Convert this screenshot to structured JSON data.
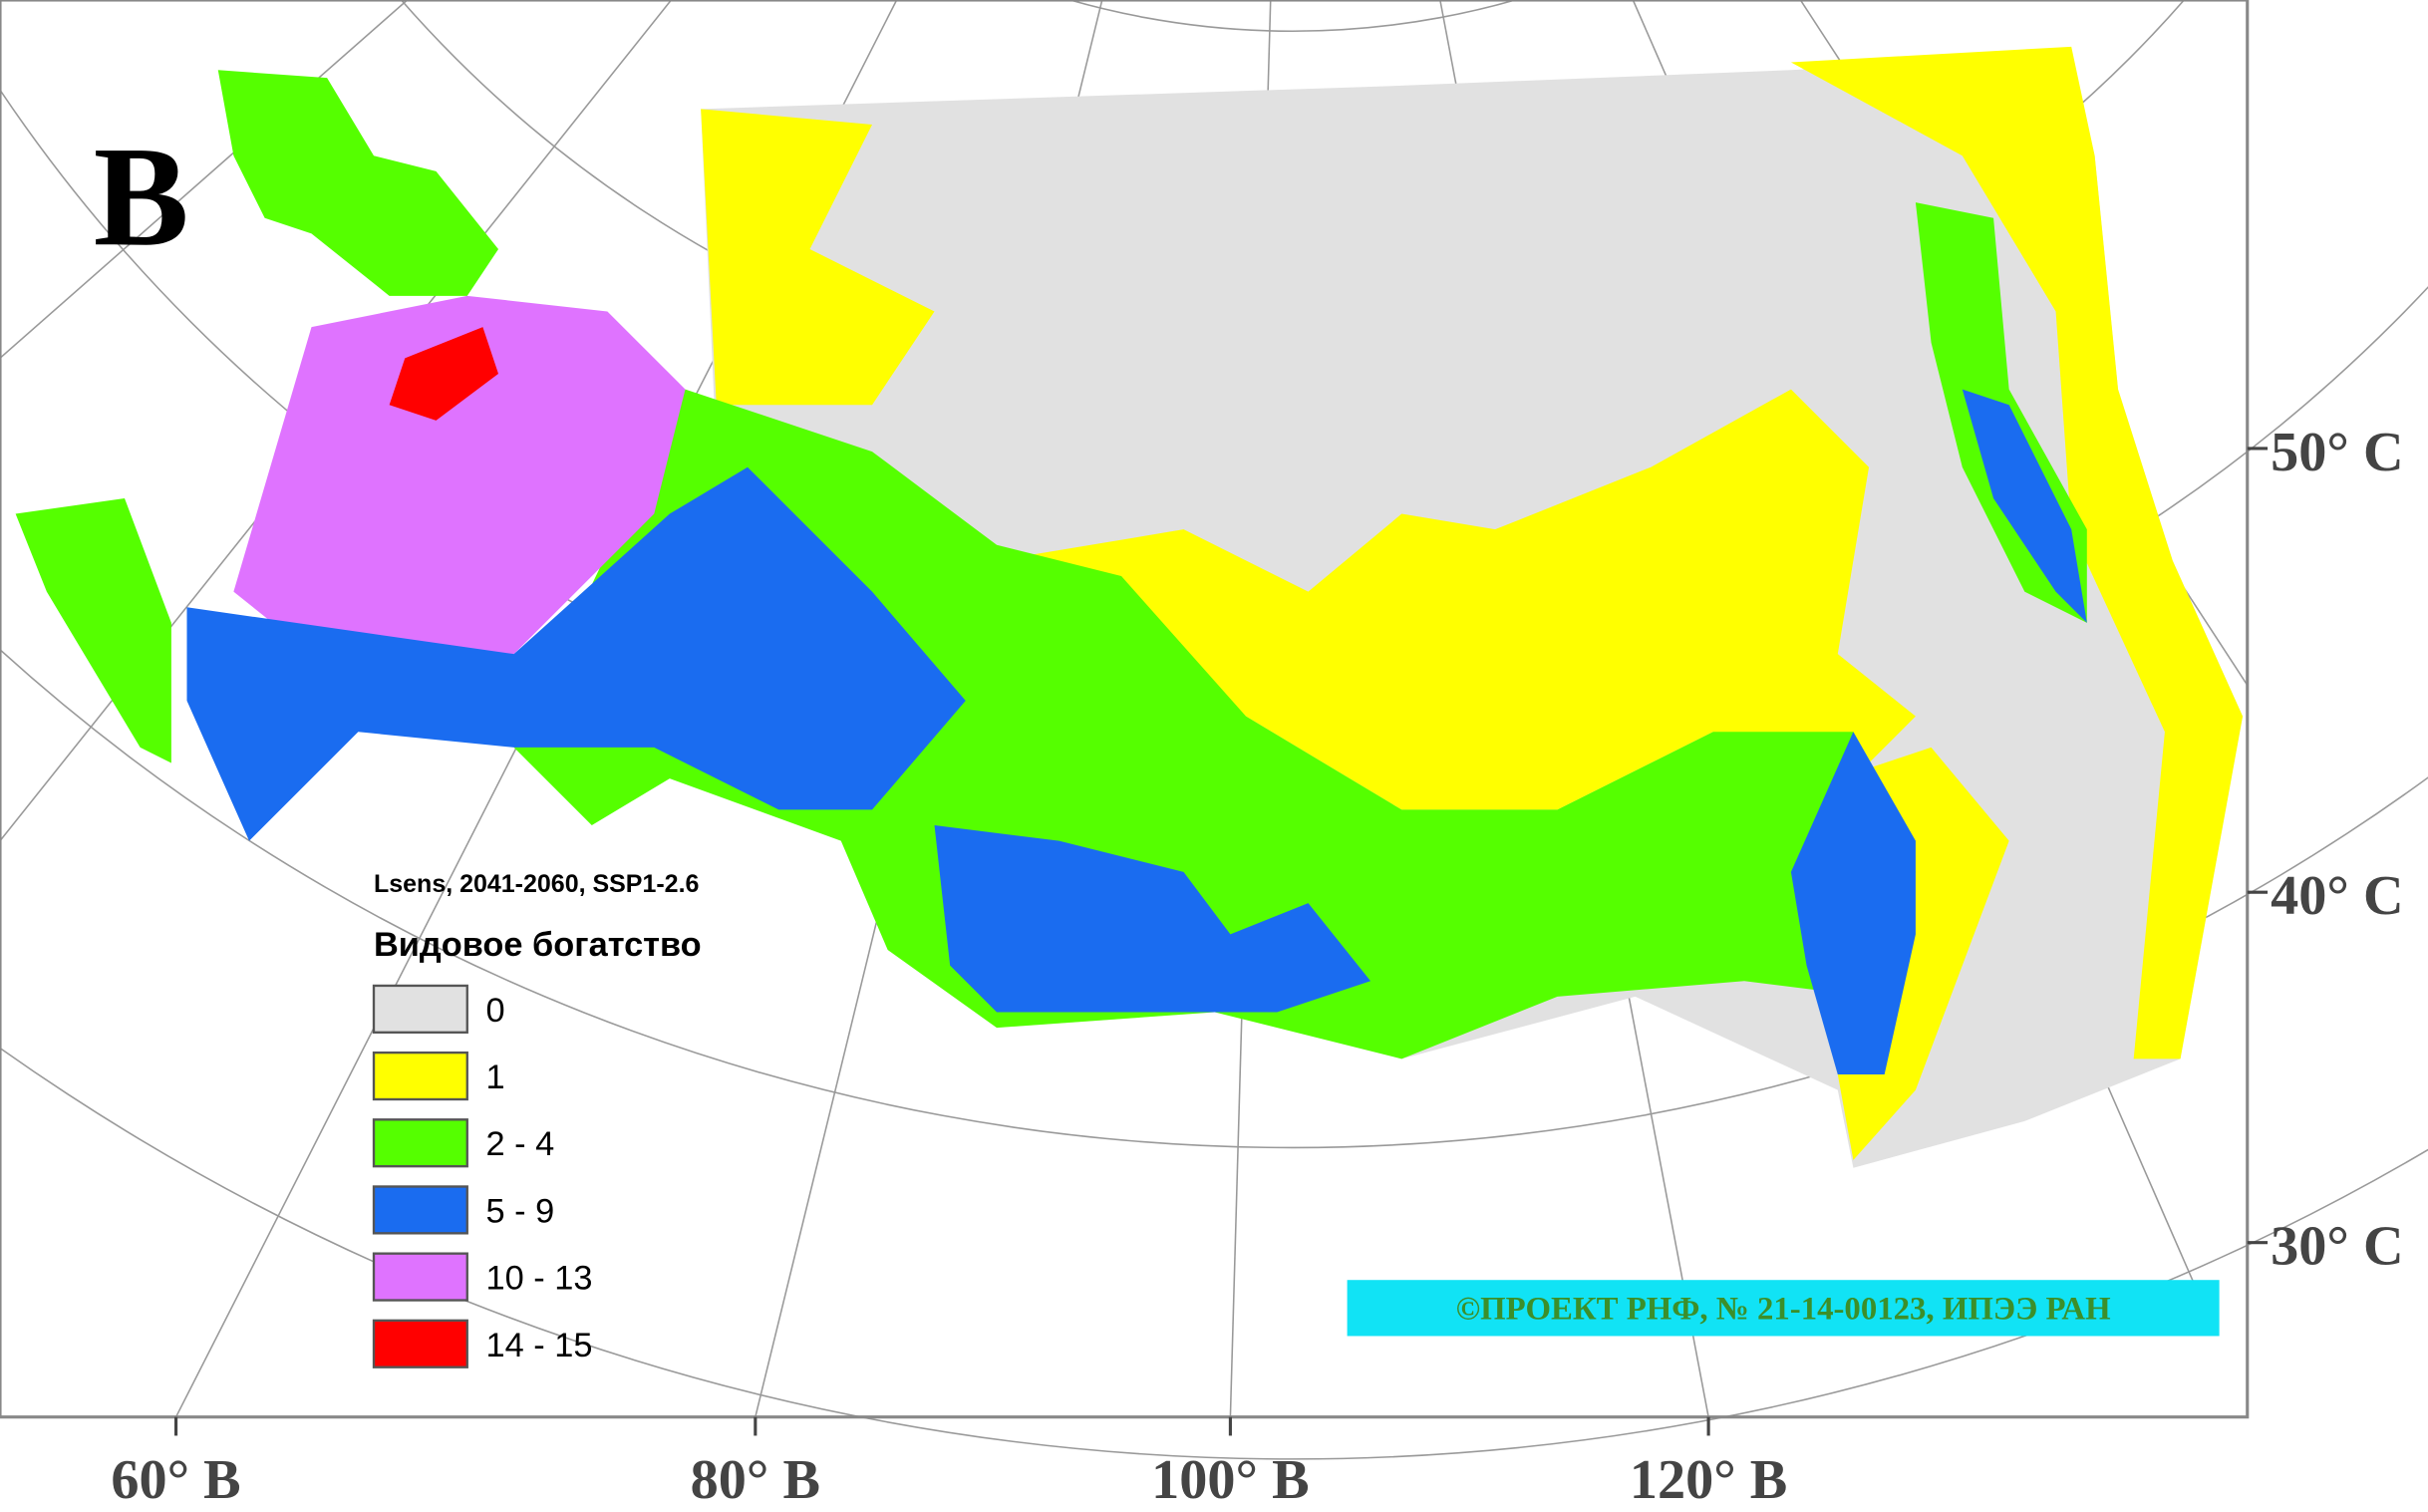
{
  "panel_label": "В",
  "legend": {
    "subtitle": "Lsens, 2041-2060, SSP1-2.6",
    "title": "Видовое богатство",
    "items": [
      {
        "label": "0",
        "color": "#e1e1e1"
      },
      {
        "label": "1",
        "color": "#ffff00"
      },
      {
        "label": "2 - 4",
        "color": "#55ff00"
      },
      {
        "label": "5 - 9",
        "color": "#1a6cf0"
      },
      {
        "label": "10 - 13",
        "color": "#df73ff"
      },
      {
        "label": "14 - 15",
        "color": "#ff0000"
      }
    ]
  },
  "latitude_labels": [
    "50° С",
    "40° С",
    "30° С"
  ],
  "longitude_labels": [
    "60° В",
    "80° В",
    "100° В",
    "120° В"
  ],
  "credit": "©ПРОЕКТ РНФ, № 21-14-00123, ИПЭЭ РАН"
}
